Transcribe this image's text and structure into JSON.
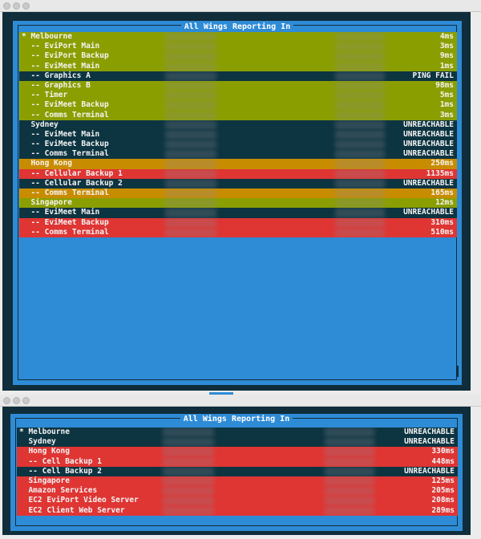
{
  "windows": [
    {
      "title": "All Wings Reporting In",
      "rows": [
        {
          "name": "* Melbourne",
          "value": "4ms",
          "status": "green"
        },
        {
          "name": "  -- EviPort Main",
          "value": "3ms",
          "status": "green"
        },
        {
          "name": "  -- EviPort Backup",
          "value": "9ms",
          "status": "green"
        },
        {
          "name": "  -- EviMeet Main",
          "value": "1ms",
          "status": "green"
        },
        {
          "name": "  -- Graphics A",
          "value": "PING FAIL",
          "status": "dark"
        },
        {
          "name": "  -- Graphics B",
          "value": "98ms",
          "status": "green"
        },
        {
          "name": "  -- Timer",
          "value": "5ms",
          "status": "green"
        },
        {
          "name": "  -- EviMeet Backup",
          "value": "1ms",
          "status": "green"
        },
        {
          "name": "  -- Comms Terminal",
          "value": "3ms",
          "status": "green"
        },
        {
          "name": "  Sydney",
          "value": "UNREACHABLE",
          "status": "dark"
        },
        {
          "name": "  -- EviMeet Main",
          "value": "UNREACHABLE",
          "status": "dark"
        },
        {
          "name": "  -- EviMeet Backup",
          "value": "UNREACHABLE",
          "status": "dark"
        },
        {
          "name": "  -- Comms Terminal",
          "value": "UNREACHABLE",
          "status": "dark"
        },
        {
          "name": "  Hong Kong",
          "value": "250ms",
          "status": "amber"
        },
        {
          "name": "  -- Cellular Backup 1",
          "value": "1135ms",
          "status": "red"
        },
        {
          "name": "  -- Cellular Backup 2",
          "value": "UNREACHABLE",
          "status": "dark"
        },
        {
          "name": "  -- Comms Terminal",
          "value": "165ms",
          "status": "amber"
        },
        {
          "name": "  Singapore",
          "value": "12ms",
          "status": "green"
        },
        {
          "name": "  -- EviMeet Main",
          "value": "UNREACHABLE",
          "status": "dark"
        },
        {
          "name": "  -- EviMeet Backup",
          "value": "310ms",
          "status": "red"
        },
        {
          "name": "  -- Comms Terminal",
          "value": "510ms",
          "status": "red"
        }
      ]
    },
    {
      "title": "All Wings Reporting In",
      "rows": [
        {
          "name": "* Melbourne",
          "value": "UNREACHABLE",
          "status": "dark"
        },
        {
          "name": "  Sydney",
          "value": "UNREACHABLE",
          "status": "dark"
        },
        {
          "name": "  Hong Kong",
          "value": "330ms",
          "status": "red"
        },
        {
          "name": "  -- Cell Backup 1",
          "value": "448ms",
          "status": "red"
        },
        {
          "name": "  -- Cell Backup 2",
          "value": "UNREACHABLE",
          "status": "dark"
        },
        {
          "name": "  Singapore",
          "value": "125ms",
          "status": "red"
        },
        {
          "name": "  Amazon Services",
          "value": "205ms",
          "status": "red"
        },
        {
          "name": "  EC2 EviPort Video Server",
          "value": "208ms",
          "status": "red"
        },
        {
          "name": "  EC2 Client Web Server",
          "value": "289ms",
          "status": "red"
        }
      ]
    }
  ],
  "colors": {
    "terminal_bg": "#0f2d3a",
    "panel_bg": "#2e8bd6",
    "ok": "#8b9e00",
    "dark": "#0d3441",
    "warn": "#c88c00",
    "bad": "#df3533"
  }
}
